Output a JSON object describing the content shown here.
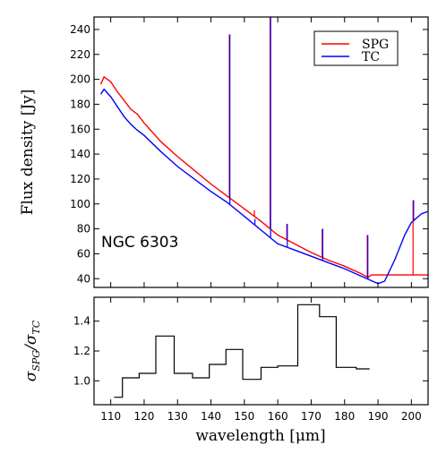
{
  "chart_data": [
    {
      "panel": "top",
      "type": "line",
      "ylabel": "Flux density [Jy]",
      "annotation": "NGC 6303",
      "xlim": [
        105,
        205
      ],
      "ylim": [
        33,
        250
      ],
      "xticks": [
        110,
        120,
        130,
        140,
        150,
        160,
        170,
        180,
        190,
        200
      ],
      "yticks": [
        40,
        60,
        80,
        100,
        120,
        140,
        160,
        180,
        200,
        220,
        240
      ],
      "legend": {
        "position": "top-right",
        "entries": [
          "SPG",
          "TC"
        ]
      },
      "series": [
        {
          "name": "SPG",
          "color": "#ff0000",
          "x": [
            107,
            108,
            110,
            112,
            114,
            116,
            118,
            120,
            125,
            130,
            135,
            140,
            145,
            150,
            155,
            160,
            165,
            170,
            175,
            180,
            185,
            187,
            188,
            205
          ],
          "y": [
            196,
            202,
            198,
            190,
            183,
            176,
            172,
            165,
            150,
            138,
            127,
            116,
            106,
            96,
            86,
            75,
            68,
            61,
            55,
            50,
            44,
            41,
            43,
            43
          ]
        },
        {
          "name": "TC",
          "color": "#0000ff",
          "x": [
            107,
            108,
            110,
            112,
            114,
            116,
            118,
            120,
            125,
            130,
            135,
            140,
            145,
            150,
            155,
            160,
            165,
            170,
            175,
            180,
            185,
            190,
            192,
            195,
            198,
            200,
            203,
            205
          ],
          "y": [
            188,
            192,
            186,
            178,
            170,
            164,
            159,
            155,
            142,
            130,
            120,
            110,
            101,
            90,
            79,
            68,
            63,
            58,
            53,
            48,
            42,
            36,
            38,
            55,
            75,
            85,
            92,
            94
          ]
        }
      ],
      "spikes": [
        {
          "x": 145.5,
          "spg": 236,
          "tc": 236
        },
        {
          "x": 153,
          "spg": 95,
          "tc": 88
        },
        {
          "x": 157.7,
          "spg": 250,
          "tc": 250
        },
        {
          "x": 162.7,
          "spg": 84,
          "tc": 84
        },
        {
          "x": 173.3,
          "spg": 80,
          "tc": 80
        },
        {
          "x": 186.8,
          "spg": 75,
          "tc": 75
        },
        {
          "x": 200.5,
          "spg": 103,
          "tc": 103
        }
      ]
    },
    {
      "panel": "bottom",
      "type": "step",
      "xlabel": "wavelength [μm]",
      "ylabel_main": "σ",
      "ylabel_sub1": "SPG",
      "ylabel_div": "/σ",
      "ylabel_sub2": "TC",
      "xlim": [
        105,
        205
      ],
      "ylim": [
        0.84,
        1.56
      ],
      "xticks": [
        110,
        120,
        130,
        140,
        150,
        160,
        170,
        180,
        190,
        200
      ],
      "yticks": [
        1.0,
        1.2,
        1.4
      ],
      "color": "#000000",
      "bins": [
        {
          "x0": 111,
          "x1": 113.5,
          "y": 0.89
        },
        {
          "x0": 113.5,
          "x1": 118.5,
          "y": 1.02
        },
        {
          "x0": 118.5,
          "x1": 123.5,
          "y": 1.05
        },
        {
          "x0": 123.5,
          "x1": 129,
          "y": 1.3
        },
        {
          "x0": 129,
          "x1": 134.5,
          "y": 1.05
        },
        {
          "x0": 134.5,
          "x1": 139.5,
          "y": 1.02
        },
        {
          "x0": 139.5,
          "x1": 144.5,
          "y": 1.11
        },
        {
          "x0": 144.5,
          "x1": 149.5,
          "y": 1.21
        },
        {
          "x0": 149.5,
          "x1": 155,
          "y": 1.01
        },
        {
          "x0": 155,
          "x1": 160,
          "y": 1.09
        },
        {
          "x0": 160,
          "x1": 166,
          "y": 1.1
        },
        {
          "x0": 166,
          "x1": 172.5,
          "y": 1.51
        },
        {
          "x0": 172.5,
          "x1": 177.5,
          "y": 1.43
        },
        {
          "x0": 177.5,
          "x1": 183.5,
          "y": 1.09
        },
        {
          "x0": 183.5,
          "x1": 187.5,
          "y": 1.08
        }
      ]
    }
  ]
}
